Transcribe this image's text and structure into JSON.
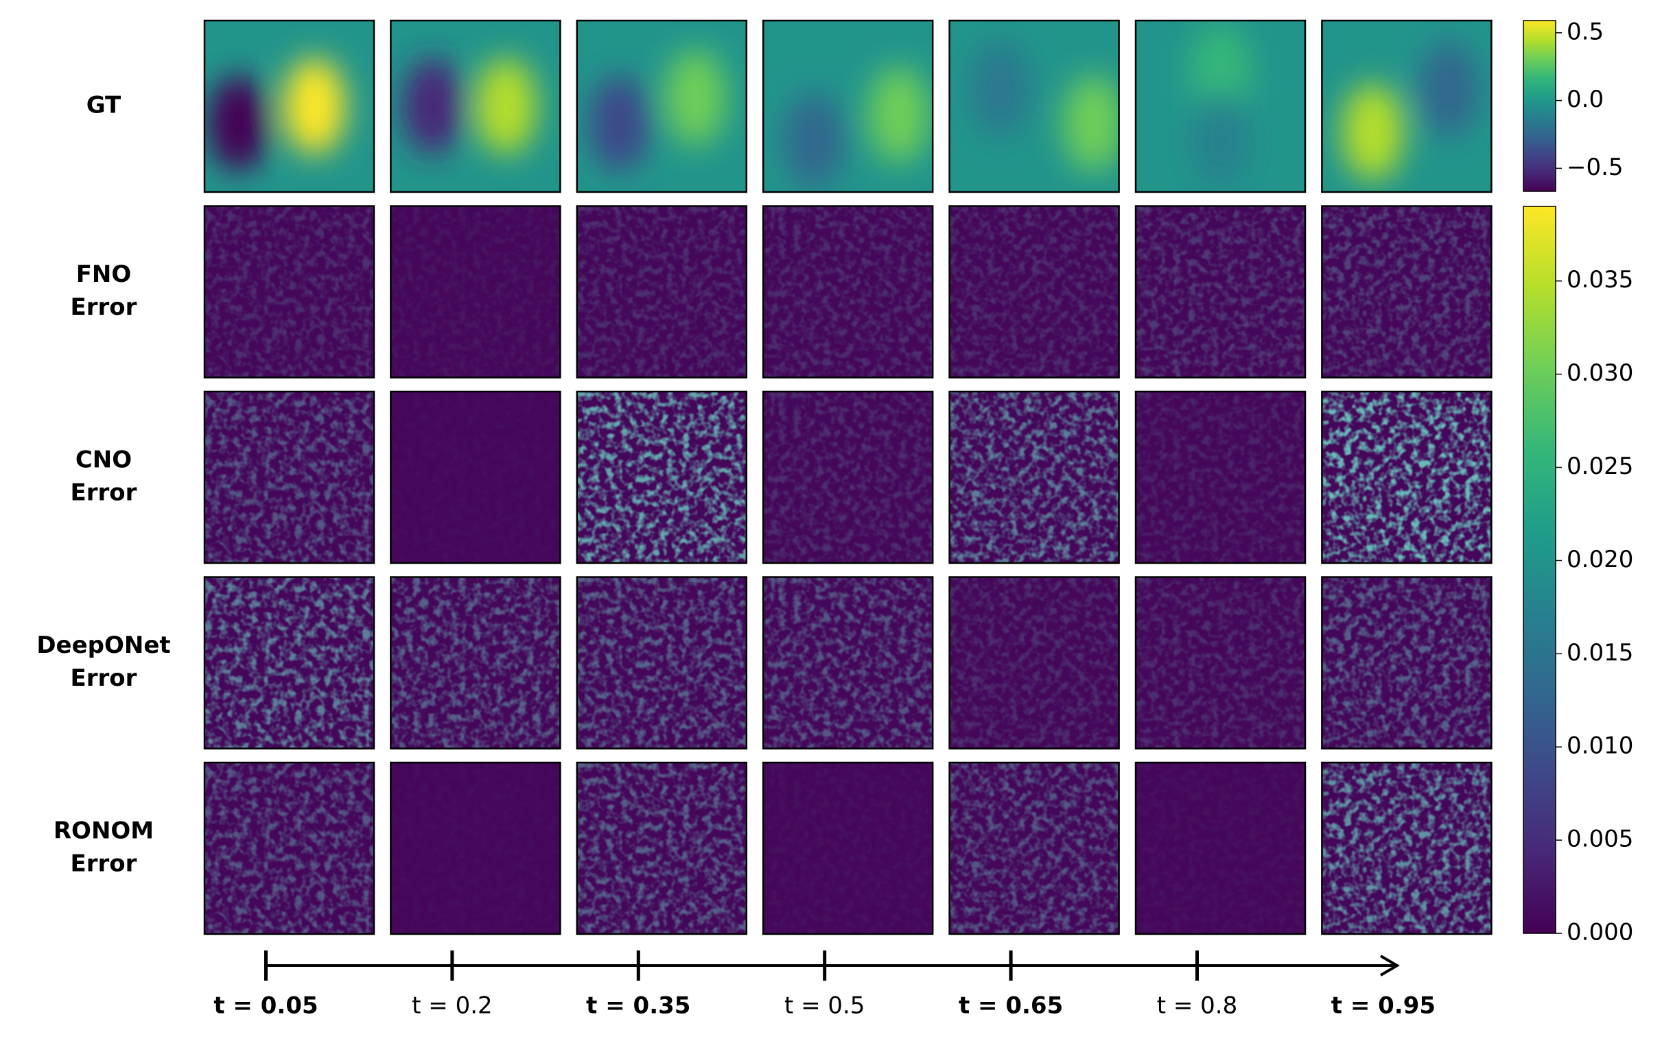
{
  "chart_data": {
    "type": "heatmap-grid",
    "rows": [
      [
        "GT"
      ],
      [
        "FNO",
        "Error"
      ],
      [
        "CNO",
        "Error"
      ],
      [
        "DeepONet",
        "Error"
      ],
      [
        "RONOM",
        "Error"
      ]
    ],
    "time_labels": [
      "t = 0.05",
      "t = 0.2",
      "t = 0.35",
      "t = 0.5",
      "t = 0.65",
      "t = 0.8",
      "t = 0.95"
    ],
    "colorbars": [
      {
        "ylim": [
          -0.67,
          0.59
        ],
        "yticks": [
          {
            "value": -0.5,
            "label": "−0.5"
          },
          {
            "value": 0,
            "label": "0.0"
          },
          0.5
        ]
      },
      {
        "ylim": [
          0,
          0.039
        ],
        "yticks": [
          {
            "value": 0,
            "label": "0.000"
          },
          0.005,
          {
            "value": 0.01,
            "label": "0.010"
          },
          0.015,
          {
            "value": 0.02,
            "label": "0.020"
          },
          0.025,
          {
            "value": 0.03,
            "label": "0.030"
          },
          0.035
        ]
      }
    ],
    "colormap": [
      "#440154",
      "#482878",
      "#3e4989",
      "#31688e",
      "#26828e",
      "#1f9e89",
      "#35b779",
      "#6ece58",
      "#b5de2b",
      "#fde725"
    ]
  }
}
